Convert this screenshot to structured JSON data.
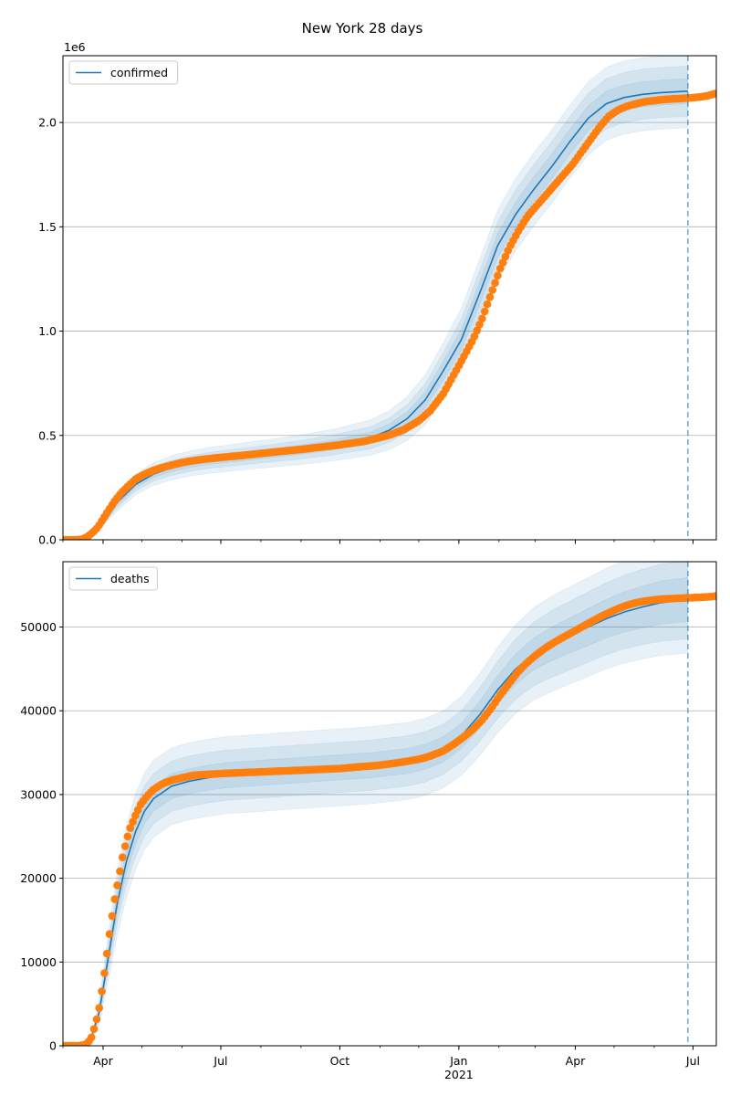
{
  "figure": {
    "title": "New York 28 days"
  },
  "colors": {
    "model_line": "#1f77b4",
    "band": "#1f77b4",
    "observed": "#ff7f0e",
    "grid": "#b0b0b0",
    "forecast_marker": "#1f77b4"
  },
  "chart_data": [
    {
      "type": "line",
      "panel": "top",
      "ylim": [
        0,
        2320000
      ],
      "xlim": [
        "2020-03-01",
        "2021-07-19"
      ],
      "y_offset_label": "1e6",
      "yticks": [
        {
          "value": 0,
          "label": "0.0"
        },
        {
          "value": 500000,
          "label": "0.5"
        },
        {
          "value": 1000000,
          "label": "1.0"
        },
        {
          "value": 1500000,
          "label": "1.5"
        },
        {
          "value": 2000000,
          "label": "2.0"
        }
      ],
      "grid": "horizontal",
      "legend": {
        "placement": "top-left",
        "entries": [
          "confirmed"
        ]
      },
      "forecast_date": "2021-06-27",
      "model": {
        "name": "confirmed",
        "x": [
          "2020-03-01",
          "2020-03-15",
          "2020-03-29",
          "2020-04-12",
          "2020-04-26",
          "2020-05-10",
          "2020-05-24",
          "2020-06-07",
          "2020-06-21",
          "2020-07-05",
          "2020-08-02",
          "2020-08-30",
          "2020-09-27",
          "2020-10-25",
          "2020-11-08",
          "2020-11-22",
          "2020-12-06",
          "2020-12-20",
          "2021-01-03",
          "2021-01-17",
          "2021-01-31",
          "2021-02-14",
          "2021-02-28",
          "2021-03-14",
          "2021-03-28",
          "2021-04-11",
          "2021-04-25",
          "2021-05-09",
          "2021-05-23",
          "2021-06-06",
          "2021-06-27"
        ],
        "y": [
          0,
          0,
          50000,
          180000,
          265000,
          315000,
          345000,
          365000,
          380000,
          390000,
          410000,
          430000,
          455000,
          490000,
          525000,
          580000,
          670000,
          810000,
          960000,
          1180000,
          1410000,
          1560000,
          1680000,
          1790000,
          1910000,
          2020000,
          2090000,
          2120000,
          2135000,
          2143000,
          2150000
        ],
        "bands": [
          {
            "label": "inner",
            "spread": [
              0,
              0,
              0,
              12000,
              15000,
              17000,
              18000,
              19000,
              19000,
              20000,
              21000,
              22000,
              24000,
              27000,
              30000,
              33000,
              38000,
              44000,
              50000,
              55000,
              58000,
              59000,
              60000,
              60000,
              60000,
              60000,
              60000,
              60000,
              60000,
              60000,
              60000
            ]
          },
          {
            "label": "middle",
            "spread": [
              0,
              0,
              0,
              26000,
              31000,
              34000,
              36000,
              37000,
              38000,
              39000,
              41000,
              44000,
              48000,
              53000,
              58000,
              66000,
              77000,
              88000,
              100000,
              110000,
              115000,
              118000,
              120000,
              120000,
              120000,
              120000,
              120000,
              120000,
              120000,
              120000,
              120000
            ]
          },
          {
            "label": "outer",
            "spread": [
              0,
              0,
              0,
              42000,
              50000,
              55000,
              58000,
              60000,
              62000,
              63000,
              66000,
              70000,
              76000,
              85000,
              93000,
              105000,
              120000,
              135000,
              150000,
              163000,
              170000,
              173000,
              175000,
              175000,
              175000,
              175000,
              175000,
              175000,
              175000,
              175000,
              175000
            ]
          }
        ]
      },
      "observed": {
        "x": [
          "2020-03-01",
          "2020-03-08",
          "2020-03-12",
          "2020-03-16",
          "2020-03-20",
          "2020-03-24",
          "2020-03-28",
          "2020-04-01",
          "2020-04-05",
          "2020-04-10",
          "2020-04-15",
          "2020-04-20",
          "2020-04-26",
          "2020-05-03",
          "2020-05-10",
          "2020-05-17",
          "2020-05-24",
          "2020-06-01",
          "2020-06-08",
          "2020-06-15",
          "2020-06-22",
          "2020-07-01",
          "2020-07-10",
          "2020-07-20",
          "2020-08-01",
          "2020-08-10",
          "2020-08-20",
          "2020-09-01",
          "2020-09-10",
          "2020-09-20",
          "2020-10-01",
          "2020-10-10",
          "2020-10-20",
          "2020-11-01",
          "2020-11-10",
          "2020-11-20",
          "2020-12-01",
          "2020-12-10",
          "2020-12-20",
          "2020-12-28",
          "2021-01-05",
          "2021-01-12",
          "2021-01-19",
          "2021-01-26",
          "2021-02-02",
          "2021-02-09",
          "2021-02-16",
          "2021-02-23",
          "2021-03-02",
          "2021-03-09",
          "2021-03-16",
          "2021-03-23",
          "2021-03-30",
          "2021-04-06",
          "2021-04-13",
          "2021-04-20",
          "2021-04-27",
          "2021-05-04",
          "2021-05-11",
          "2021-05-18",
          "2021-05-25",
          "2021-06-01",
          "2021-06-08",
          "2021-06-15",
          "2021-06-22",
          "2021-06-29",
          "2021-07-06",
          "2021-07-12",
          "2021-07-19"
        ],
        "y": [
          0,
          0,
          0,
          3000,
          15000,
          35000,
          60000,
          100000,
          140000,
          185000,
          225000,
          255000,
          290000,
          315000,
          333000,
          347000,
          358000,
          370000,
          378000,
          384000,
          389000,
          395000,
          400000,
          406000,
          414000,
          420000,
          426000,
          433000,
          440000,
          447000,
          455000,
          463000,
          472000,
          490000,
          505000,
          530000,
          570000,
          620000,
          700000,
          790000,
          880000,
          960000,
          1060000,
          1180000,
          1300000,
          1400000,
          1480000,
          1550000,
          1600000,
          1650000,
          1700000,
          1750000,
          1800000,
          1860000,
          1920000,
          1980000,
          2030000,
          2060000,
          2078000,
          2090000,
          2100000,
          2105000,
          2110000,
          2113000,
          2115000,
          2118000,
          2122000,
          2128000,
          2140000
        ]
      }
    },
    {
      "type": "line",
      "panel": "bottom",
      "ylim": [
        0,
        57800
      ],
      "xlim": [
        "2020-03-01",
        "2021-07-19"
      ],
      "yticks": [
        {
          "value": 0,
          "label": "0"
        },
        {
          "value": 10000,
          "label": "10000"
        },
        {
          "value": 20000,
          "label": "20000"
        },
        {
          "value": 30000,
          "label": "30000"
        },
        {
          "value": 40000,
          "label": "40000"
        },
        {
          "value": 50000,
          "label": "50000"
        }
      ],
      "xticks": [
        {
          "date": "2020-04-01",
          "label": "Apr"
        },
        {
          "date": "2020-07-01",
          "label": "Jul"
        },
        {
          "date": "2020-10-01",
          "label": "Oct"
        },
        {
          "date": "2021-01-01",
          "label": "Jan",
          "sublabel": "2021"
        },
        {
          "date": "2021-04-01",
          "label": "Apr"
        },
        {
          "date": "2021-07-01",
          "label": "Jul"
        }
      ],
      "grid": "horizontal",
      "legend": {
        "placement": "top-left",
        "entries": [
          "deaths"
        ]
      },
      "forecast_date": "2021-06-27",
      "model": {
        "name": "deaths",
        "x": [
          "2020-03-01",
          "2020-03-15",
          "2020-03-22",
          "2020-03-29",
          "2020-04-05",
          "2020-04-12",
          "2020-04-19",
          "2020-04-26",
          "2020-05-03",
          "2020-05-10",
          "2020-05-24",
          "2020-06-07",
          "2020-06-21",
          "2020-07-05",
          "2020-08-02",
          "2020-08-30",
          "2020-09-27",
          "2020-10-25",
          "2020-11-22",
          "2020-12-06",
          "2020-12-20",
          "2021-01-03",
          "2021-01-17",
          "2021-01-31",
          "2021-02-14",
          "2021-02-28",
          "2021-03-14",
          "2021-03-28",
          "2021-04-11",
          "2021-04-25",
          "2021-05-09",
          "2021-05-23",
          "2021-06-06",
          "2021-06-27"
        ],
        "y": [
          0,
          0,
          500,
          4000,
          10500,
          17000,
          22000,
          25500,
          28000,
          29500,
          31000,
          31600,
          32000,
          32300,
          32600,
          32900,
          33200,
          33500,
          34000,
          34500,
          35400,
          37000,
          39500,
          42500,
          45000,
          46800,
          48000,
          49000,
          50000,
          51000,
          51800,
          52400,
          52900,
          53300
        ],
        "bands": [
          {
            "label": "inner",
            "spread": [
              0,
              0,
              0,
              400,
              800,
              1200,
              1400,
              1500,
              1500,
              1500,
              1500,
              1500,
              1500,
              1500,
              1500,
              1500,
              1500,
              1500,
              1500,
              1500,
              1500,
              1500,
              1600,
              1700,
              1800,
              1900,
              2000,
              2100,
              2200,
              2300,
              2400,
              2500,
              2600,
              2600
            ]
          },
          {
            "label": "middle",
            "spread": [
              0,
              0,
              0,
              900,
              1700,
              2400,
              2800,
              3000,
              3000,
              3000,
              3000,
              3000,
              3000,
              3000,
              3000,
              3000,
              3000,
              3000,
              3000,
              3000,
              3000,
              3000,
              3200,
              3400,
              3600,
              3800,
              4000,
              4100,
              4200,
              4300,
              4400,
              4500,
              4600,
              4700
            ]
          },
          {
            "label": "outer",
            "spread": [
              0,
              0,
              0,
              1500,
              2800,
              3800,
              4300,
              4500,
              4600,
              4600,
              4600,
              4600,
              4600,
              4600,
              4600,
              4600,
              4600,
              4600,
              4600,
              4600,
              4600,
              4700,
              4900,
              5100,
              5300,
              5500,
              5700,
              5800,
              5900,
              6000,
              6100,
              6200,
              6300,
              6400
            ]
          }
        ]
      },
      "observed": {
        "x": [
          "2020-03-01",
          "2020-03-08",
          "2020-03-13",
          "2020-03-17",
          "2020-03-20",
          "2020-03-23",
          "2020-03-26",
          "2020-03-29",
          "2020-04-01",
          "2020-04-04",
          "2020-04-07",
          "2020-04-10",
          "2020-04-13",
          "2020-04-16",
          "2020-04-19",
          "2020-04-22",
          "2020-04-26",
          "2020-04-30",
          "2020-05-05",
          "2020-05-10",
          "2020-05-17",
          "2020-05-24",
          "2020-06-01",
          "2020-06-10",
          "2020-06-20",
          "2020-07-01",
          "2020-07-15",
          "2020-08-01",
          "2020-08-15",
          "2020-09-01",
          "2020-09-15",
          "2020-10-01",
          "2020-10-15",
          "2020-11-01",
          "2020-11-15",
          "2020-12-01",
          "2020-12-10",
          "2020-12-20",
          "2020-12-28",
          "2021-01-05",
          "2021-01-12",
          "2021-01-19",
          "2021-01-26",
          "2021-02-02",
          "2021-02-09",
          "2021-02-16",
          "2021-02-23",
          "2021-03-02",
          "2021-03-09",
          "2021-03-16",
          "2021-03-23",
          "2021-03-30",
          "2021-04-06",
          "2021-04-13",
          "2021-04-20",
          "2021-04-27",
          "2021-05-04",
          "2021-05-11",
          "2021-05-18",
          "2021-05-25",
          "2021-06-01",
          "2021-06-08",
          "2021-06-15",
          "2021-06-22",
          "2021-06-29",
          "2021-07-06",
          "2021-07-12",
          "2021-07-19"
        ],
        "y": [
          0,
          0,
          0,
          100,
          300,
          1000,
          2500,
          4500,
          7500,
          11000,
          14500,
          17500,
          20000,
          22500,
          24500,
          26000,
          27500,
          28800,
          29800,
          30600,
          31300,
          31700,
          32000,
          32300,
          32400,
          32500,
          32600,
          32700,
          32800,
          32900,
          33000,
          33100,
          33300,
          33500,
          33800,
          34200,
          34600,
          35200,
          36000,
          36900,
          37800,
          38900,
          40300,
          41900,
          43300,
          44700,
          45800,
          46700,
          47500,
          48200,
          48800,
          49400,
          50000,
          50600,
          51200,
          51700,
          52200,
          52600,
          52900,
          53100,
          53250,
          53350,
          53400,
          53450,
          53500,
          53550,
          53600,
          53700
        ]
      }
    }
  ]
}
